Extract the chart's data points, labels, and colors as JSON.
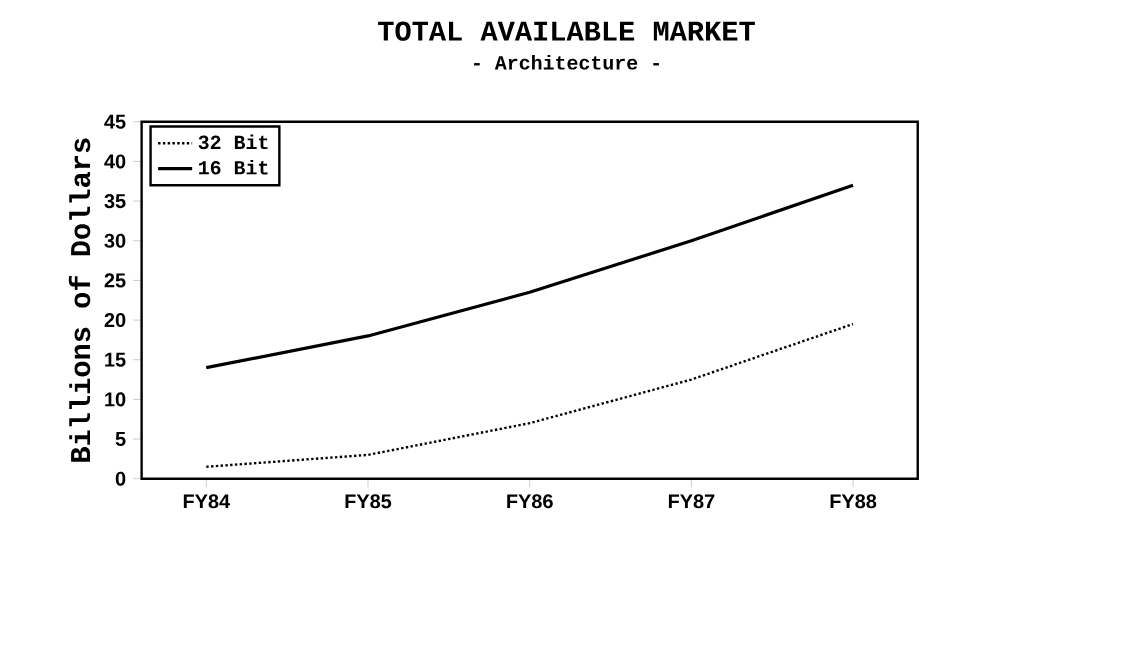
{
  "chart_data": {
    "type": "line",
    "title": "TOTAL AVAILABLE MARKET",
    "subtitle": "- Architecture -",
    "ylabel": "Billions of Dollars",
    "categories": [
      "FY84",
      "FY85",
      "FY86",
      "FY87",
      "FY88"
    ],
    "series": [
      {
        "name": "32 Bit",
        "color": "#000000",
        "line_style": "dotted",
        "values": [
          1.5,
          3,
          7,
          12.5,
          19.5
        ]
      },
      {
        "name": "16 Bit",
        "color": "#000000",
        "line_style": "solid",
        "values": [
          14,
          18,
          23.5,
          30,
          37
        ]
      }
    ],
    "ylim": [
      0,
      45
    ],
    "yticks": [
      0,
      5,
      10,
      15,
      20,
      25,
      30,
      35,
      40,
      45
    ],
    "legend": "top left",
    "marker": "none",
    "grid": false
  }
}
